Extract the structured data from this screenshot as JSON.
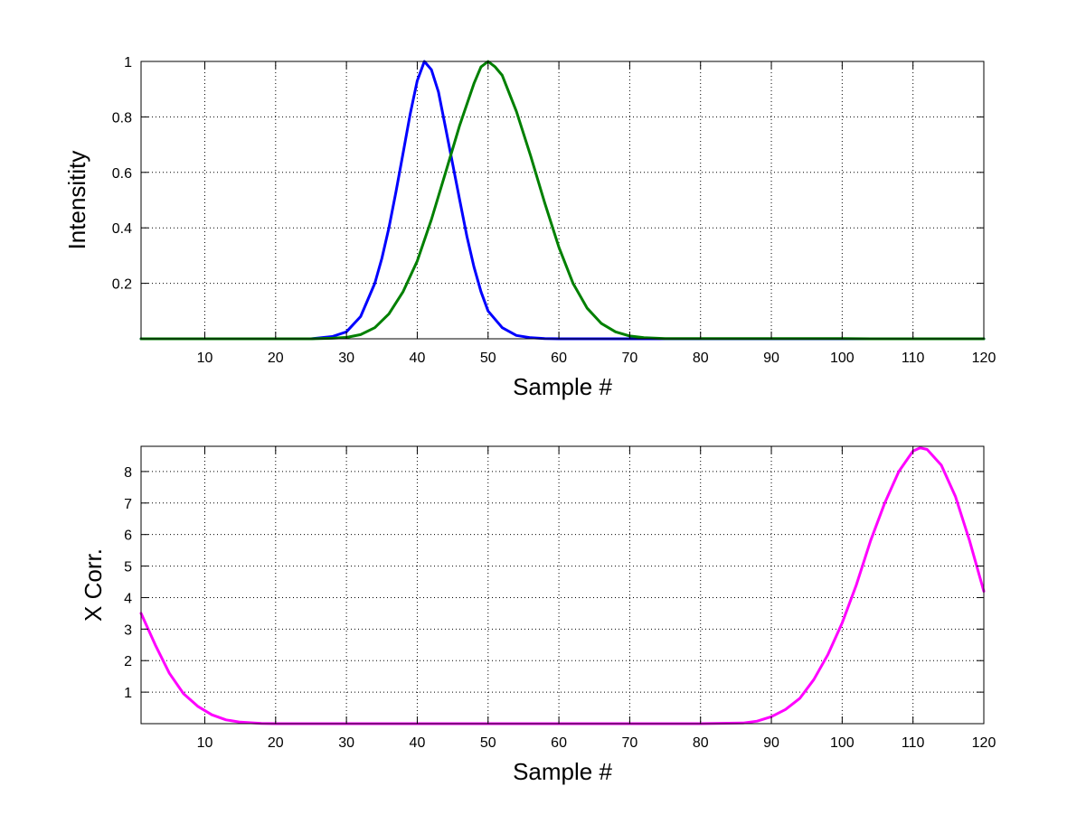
{
  "chart_data": [
    {
      "type": "line",
      "title": "",
      "xlabel": "Sample #",
      "ylabel": "Intensitity",
      "xlim": [
        1,
        120
      ],
      "ylim": [
        0,
        1
      ],
      "grid": true,
      "xticks": [
        10,
        20,
        30,
        40,
        50,
        60,
        70,
        80,
        90,
        100,
        110,
        120
      ],
      "yticks": [
        0.2,
        0.4,
        0.6,
        0.8,
        1
      ],
      "ytick_labels": [
        "0.2",
        "0.4",
        "0.6",
        "0.8",
        "1"
      ],
      "series": [
        {
          "color": "#0000ff",
          "x": [
            1,
            10,
            20,
            25,
            28,
            30,
            32,
            34,
            35,
            36,
            37,
            38,
            39,
            40,
            41,
            42,
            43,
            44,
            45,
            46,
            47,
            48,
            49,
            50,
            52,
            54,
            56,
            58,
            60,
            65,
            70,
            80,
            90,
            100,
            110,
            120
          ],
          "y": [
            0,
            0,
            0,
            0,
            0.008,
            0.025,
            0.08,
            0.2,
            0.29,
            0.4,
            0.53,
            0.67,
            0.81,
            0.93,
            1.0,
            0.97,
            0.89,
            0.76,
            0.63,
            0.5,
            0.37,
            0.26,
            0.17,
            0.1,
            0.04,
            0.012,
            0.004,
            0.001,
            0,
            0,
            0,
            0,
            0,
            0,
            0,
            0
          ]
        },
        {
          "color": "#008000",
          "x": [
            1,
            10,
            20,
            25,
            28,
            30,
            32,
            34,
            36,
            38,
            40,
            42,
            44,
            46,
            48,
            49,
            50,
            51,
            52,
            54,
            56,
            58,
            60,
            62,
            64,
            66,
            68,
            70,
            72,
            75,
            80,
            90,
            100,
            104,
            110,
            120
          ],
          "y": [
            0,
            0,
            0,
            0,
            0.002,
            0.005,
            0.015,
            0.04,
            0.09,
            0.17,
            0.28,
            0.43,
            0.6,
            0.77,
            0.92,
            0.98,
            1.0,
            0.98,
            0.95,
            0.82,
            0.66,
            0.49,
            0.33,
            0.2,
            0.11,
            0.055,
            0.025,
            0.01,
            0.004,
            0.001,
            0.001,
            0.001,
            0.001,
            0,
            0,
            0
          ]
        }
      ]
    },
    {
      "type": "line",
      "title": "",
      "xlabel": "Sample #",
      "ylabel": "X Corr.",
      "xlim": [
        1,
        120
      ],
      "ylim": [
        0,
        8.8
      ],
      "grid": true,
      "xticks": [
        10,
        20,
        30,
        40,
        50,
        60,
        70,
        80,
        90,
        100,
        110,
        120
      ],
      "yticks": [
        1,
        2,
        3,
        4,
        5,
        6,
        7,
        8
      ],
      "ytick_labels": [
        "1",
        "2",
        "3",
        "4",
        "5",
        "6",
        "7",
        "8"
      ],
      "series": [
        {
          "color": "#ff00ff",
          "x": [
            1,
            3,
            5,
            7,
            9,
            11,
            13,
            15,
            18,
            20,
            30,
            40,
            50,
            60,
            70,
            80,
            86,
            88,
            90,
            92,
            94,
            96,
            98,
            100,
            102,
            104,
            106,
            108,
            110,
            111,
            112,
            114,
            116,
            118,
            120
          ],
          "y": [
            3.5,
            2.5,
            1.6,
            0.95,
            0.55,
            0.28,
            0.12,
            0.05,
            0.01,
            0,
            0,
            0,
            0,
            0,
            0,
            0,
            0.02,
            0.08,
            0.22,
            0.45,
            0.8,
            1.4,
            2.2,
            3.2,
            4.4,
            5.8,
            7.0,
            8.0,
            8.65,
            8.75,
            8.7,
            8.2,
            7.2,
            5.8,
            4.2
          ]
        }
      ]
    }
  ]
}
